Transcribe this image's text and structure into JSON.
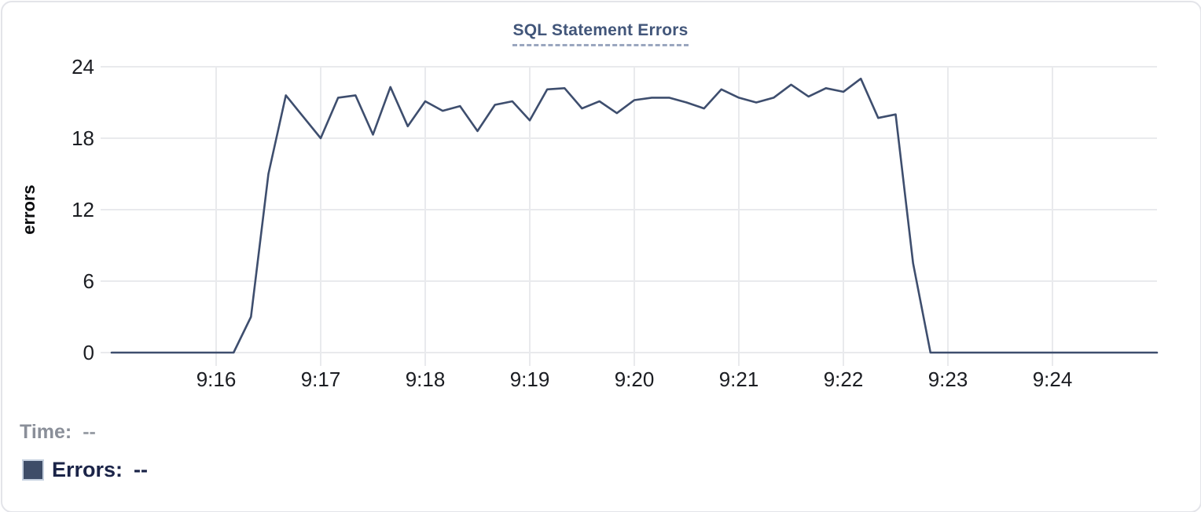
{
  "chart_data": {
    "type": "line",
    "title": "SQL Statement Errors",
    "ylabel": "errors",
    "ylim": [
      0,
      24
    ],
    "yticks": [
      0,
      6,
      12,
      18,
      24
    ],
    "xticks": [
      "9:16",
      "9:17",
      "9:18",
      "9:19",
      "9:20",
      "9:21",
      "9:22",
      "9:23",
      "9:24"
    ],
    "x_range": [
      "9:15:00",
      "9:25:00"
    ],
    "sample_interval_seconds": 10,
    "grid": true,
    "legend_position": "bottom-left",
    "x_times": [
      "9:15:00",
      "9:15:10",
      "9:15:20",
      "9:15:30",
      "9:15:40",
      "9:15:50",
      "9:16:00",
      "9:16:10",
      "9:16:20",
      "9:16:30",
      "9:16:40",
      "9:16:50",
      "9:17:00",
      "9:17:10",
      "9:17:20",
      "9:17:30",
      "9:17:40",
      "9:17:50",
      "9:18:00",
      "9:18:10",
      "9:18:20",
      "9:18:30",
      "9:18:40",
      "9:18:50",
      "9:19:00",
      "9:19:10",
      "9:19:20",
      "9:19:30",
      "9:19:40",
      "9:19:50",
      "9:20:00",
      "9:20:10",
      "9:20:20",
      "9:20:30",
      "9:20:40",
      "9:20:50",
      "9:21:00",
      "9:21:10",
      "9:21:20",
      "9:21:30",
      "9:21:40",
      "9:21:50",
      "9:22:00",
      "9:22:10",
      "9:22:20",
      "9:22:30",
      "9:22:40",
      "9:22:50",
      "9:23:00",
      "9:23:10",
      "9:23:20",
      "9:23:30",
      "9:23:40",
      "9:23:50",
      "9:24:00",
      "9:24:10",
      "9:24:20",
      "9:24:30",
      "9:24:40",
      "9:24:50",
      "9:25:00"
    ],
    "series": [
      {
        "name": "Errors",
        "color": "#3e4e6e",
        "values": [
          0,
          0,
          0,
          0,
          0,
          0,
          0,
          0,
          3,
          15,
          21.6,
          19.8,
          18,
          21.4,
          21.6,
          18.3,
          22.3,
          19,
          21.1,
          20.3,
          20.7,
          18.6,
          20.8,
          21.1,
          19.5,
          22.1,
          22.2,
          20.5,
          21.1,
          20.1,
          21.2,
          21.4,
          21.4,
          21,
          20.5,
          22.1,
          21.4,
          21,
          21.4,
          22.5,
          21.5,
          22.2,
          21.9,
          23,
          19.7,
          20,
          7.5,
          0,
          0,
          0,
          0,
          0,
          0,
          0,
          0,
          0,
          0,
          0,
          0,
          0,
          0
        ]
      }
    ]
  },
  "colors": {
    "line": "#3e4e6e",
    "grid": "#e9eaed",
    "tick_label": "#1b1d22",
    "title": "#42567a",
    "title_underline": "#9aa6bf",
    "time_label": "#8a8f99",
    "errors_label": "#1b2448",
    "swatch": "#3e4d68"
  },
  "readout": {
    "time_label": "Time:",
    "time_value": "--",
    "errors_label": "Errors:",
    "errors_value": "--"
  }
}
